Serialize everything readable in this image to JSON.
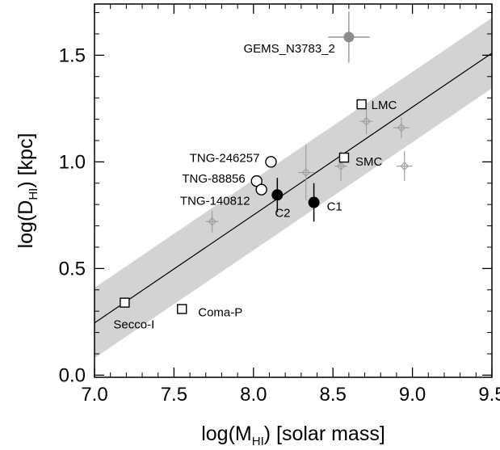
{
  "chart_data": {
    "type": "scatter",
    "xlabel": {
      "prefix": "log(M",
      "sub": "HI",
      "suffix": ") [solar mass]"
    },
    "ylabel": {
      "prefix": "log(D",
      "sub": "HI",
      "suffix": ") [kpc]"
    },
    "xlim": [
      7.0,
      9.5
    ],
    "ylim": [
      -0.01,
      1.74
    ],
    "xticks": [
      7.0,
      7.5,
      8.0,
      8.5,
      9.0,
      9.5
    ],
    "xtick_labels": [
      "7.0",
      "7.5",
      "8.0",
      "8.5",
      "9.0",
      "9.5"
    ],
    "yticks": [
      0.0,
      0.5,
      1.0,
      1.5
    ],
    "ytick_labels": [
      "0.0",
      "0.5",
      "1.0",
      "1.5"
    ],
    "grid": false,
    "fit_line": {
      "x": [
        7.0,
        9.5
      ],
      "y": [
        0.245,
        1.51
      ]
    },
    "scatter_band": {
      "x": [
        7.0,
        9.5
      ],
      "lower": [
        0.08,
        1.345
      ],
      "upper": [
        0.41,
        1.675
      ],
      "color": "#d3d3d3"
    },
    "colors": {
      "gray_point": "#a0a0a0",
      "black": "#000000",
      "gems": "#8c8c8c"
    },
    "reference_points": [
      {
        "x": 7.74,
        "y": 0.72,
        "xerr": 0.04,
        "yerr": 0.05
      },
      {
        "x": 8.33,
        "y": 0.95,
        "xerr": 0.05,
        "yerr": 0.13
      },
      {
        "x": 8.55,
        "y": 0.98,
        "xerr": 0.04,
        "yerr": 0.07
      },
      {
        "x": 8.71,
        "y": 1.19,
        "xerr": 0.04,
        "yerr": 0.06
      },
      {
        "x": 8.93,
        "y": 1.16,
        "xerr": 0.05,
        "yerr": 0.05
      },
      {
        "x": 8.95,
        "y": 0.98,
        "xerr": 0.05,
        "yerr": 0.07
      }
    ],
    "squares": [
      {
        "label": "LMC",
        "x": 8.68,
        "y": 1.27
      },
      {
        "label": "SMC",
        "x": 8.57,
        "y": 1.02
      },
      {
        "label": "Coma-P",
        "x": 7.55,
        "y": 0.31
      },
      {
        "label": "Secco-I",
        "x": 7.19,
        "y": 0.34
      }
    ],
    "tng_circles": [
      {
        "label": "TNG-246257",
        "x": 8.11,
        "y": 1.0
      },
      {
        "label": "TNG-88856",
        "x": 8.02,
        "y": 0.91
      },
      {
        "label": "TNG-140812",
        "x": 8.05,
        "y": 0.87
      }
    ],
    "filled_points": [
      {
        "label": "C2",
        "x": 8.15,
        "y": 0.845,
        "yerr": 0.08
      },
      {
        "label": "C1",
        "x": 8.38,
        "y": 0.81,
        "yerr": 0.09
      }
    ],
    "gems_point": {
      "label": "GEMS_N3783_2",
      "x": 8.6,
      "y": 1.585,
      "xerr": 0.13,
      "yerr": 0.12
    }
  }
}
